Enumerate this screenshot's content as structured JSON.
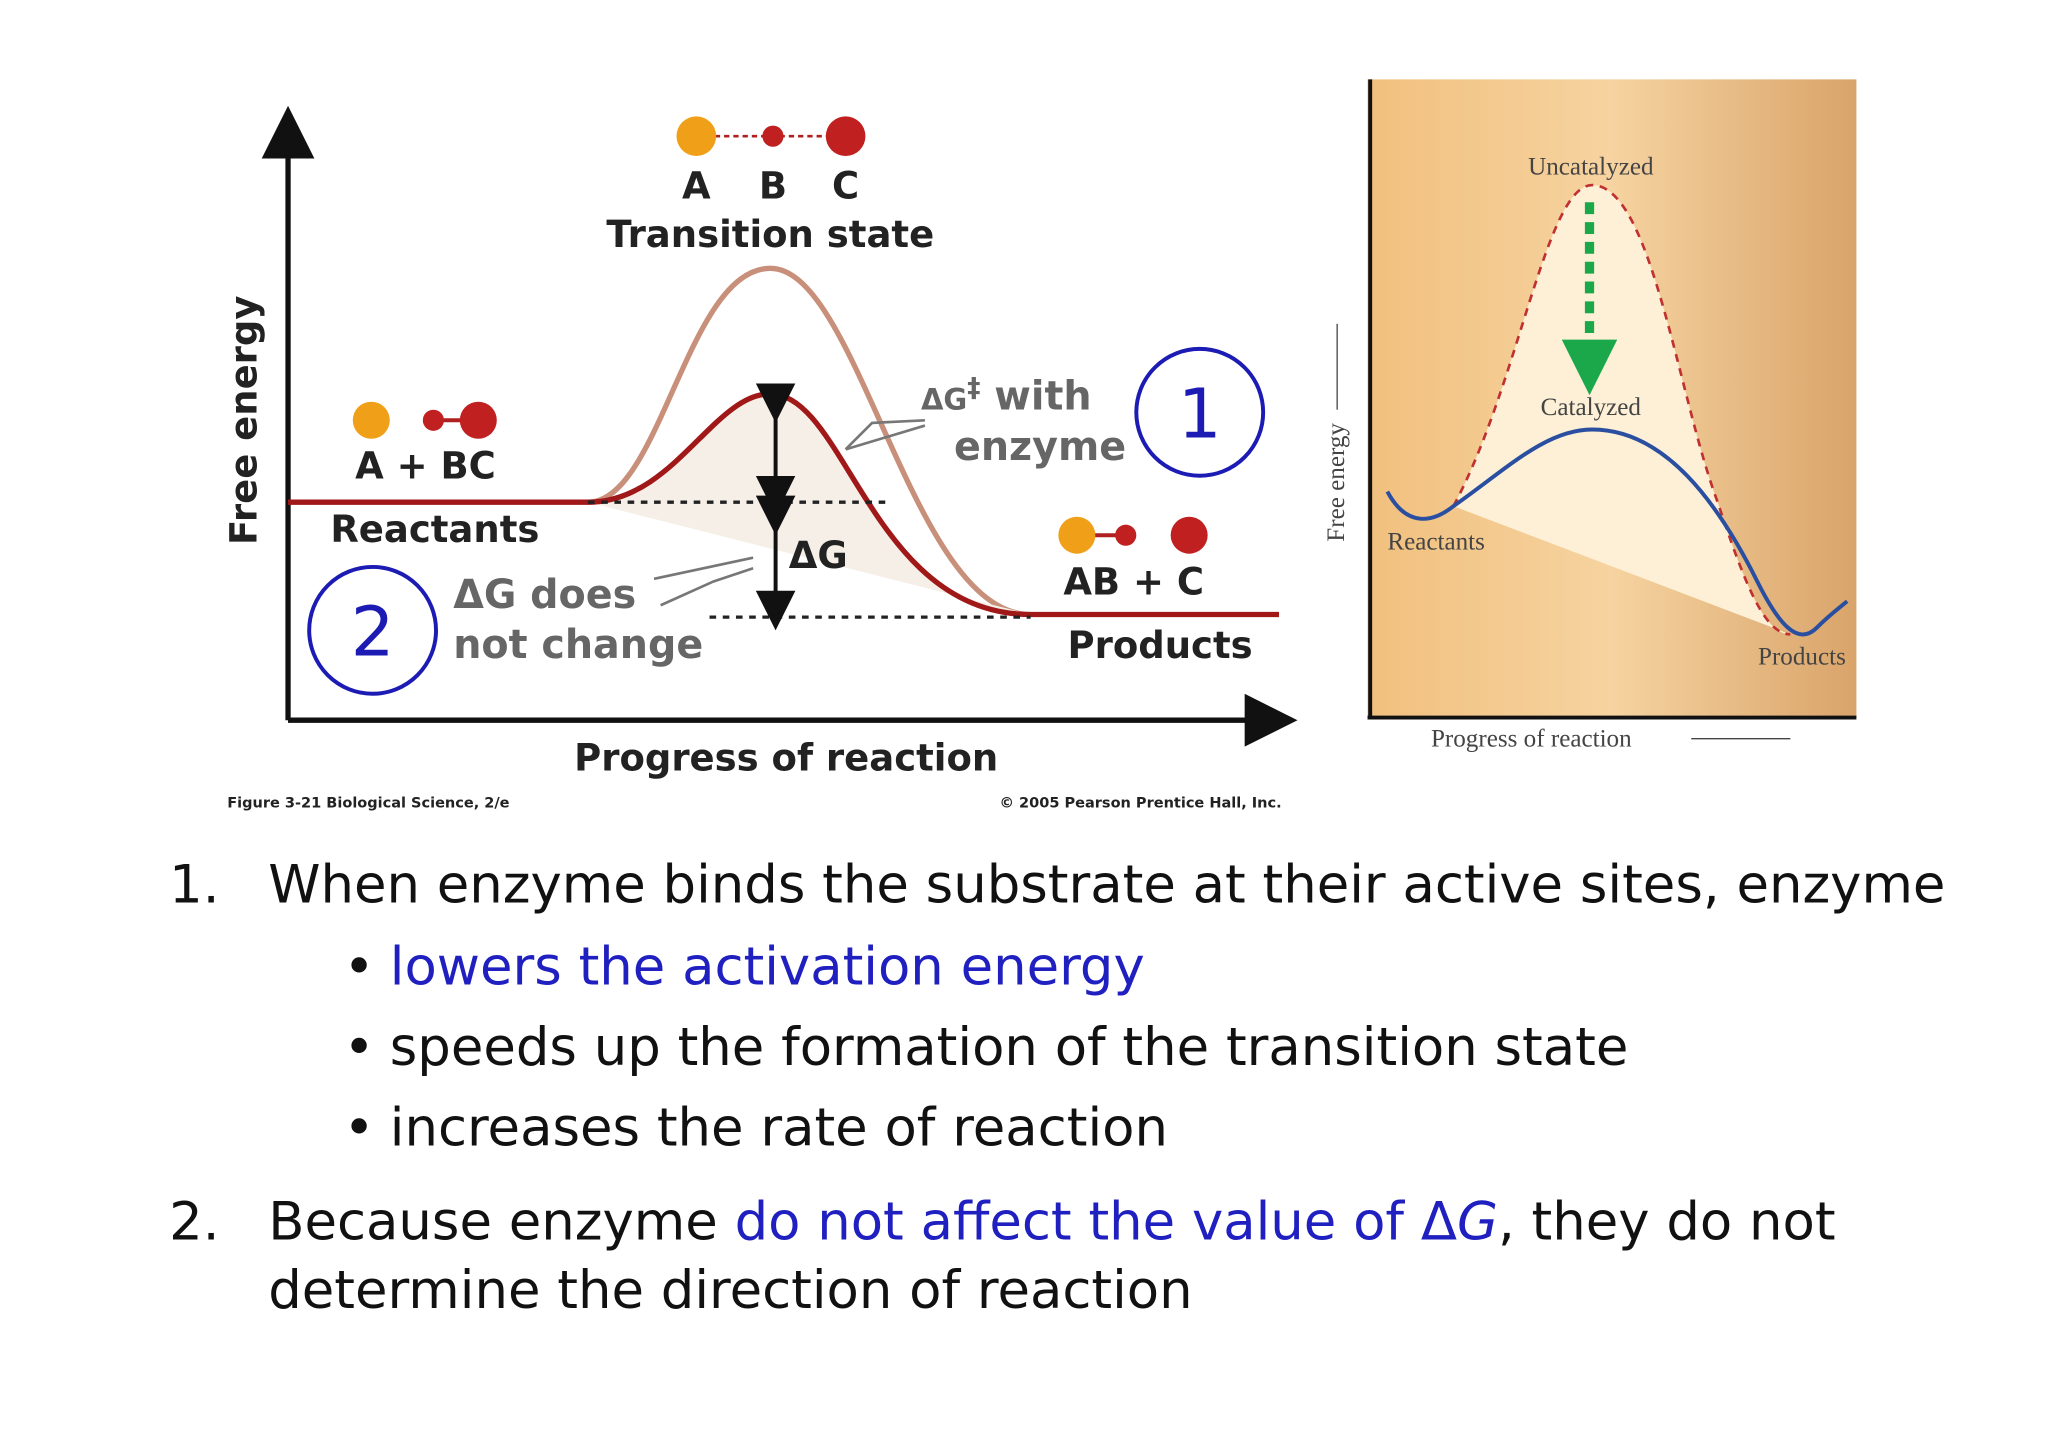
{
  "left_diagram": {
    "molecule_labels": [
      "A",
      "B",
      "C"
    ],
    "transition_state": "Transition state",
    "y_axis": "Free energy",
    "x_axis": "Progress of reaction",
    "reactants_formula": "A + BC",
    "reactants": "Reactants",
    "products_formula": "AB + C",
    "products": "Products",
    "activation_label": [
      "ΔG",
      "‡",
      " with",
      "enzyme"
    ],
    "delta_g": "ΔG",
    "delta_g_note": [
      "ΔG does",
      "not change"
    ],
    "markers": [
      "1",
      "2"
    ],
    "figure_caption": "Figure 3-21  Biological Science, 2/e",
    "copyright": "© 2005 Pearson Prentice Hall, Inc."
  },
  "right_diagram": {
    "uncatalyzed": "Uncatalyzed",
    "catalyzed": "Catalyzed",
    "y_axis": "Free energy",
    "reactants": "Reactants",
    "products": "Products",
    "x_axis": "Progress of reaction"
  },
  "list": {
    "item1": {
      "number": "1.",
      "text": "When enzyme binds the substrate at their active sites, enzyme",
      "bullet": "•",
      "bullets": [
        "lowers the activation energy",
        "speeds up the formation of the transition state",
        "increases the rate of reaction"
      ]
    },
    "item2": {
      "number": "2.",
      "line1": [
        "Because enzyme ",
        "do not affect the value of Δ",
        "G",
        ", they do not"
      ],
      "line2": "determine the direction of reaction"
    }
  }
}
